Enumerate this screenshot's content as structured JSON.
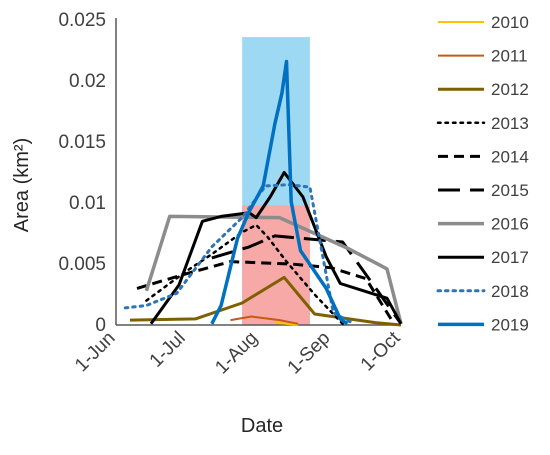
{
  "chart_data": {
    "type": "line",
    "xlabel": "Date",
    "ylabel": "Area (km²)",
    "xlim": [
      "2019-06-01",
      "2019-10-01"
    ],
    "ylim": [
      0,
      0.025
    ],
    "x_ticks": [
      "2019-06-01",
      "2019-07-01",
      "2019-08-01",
      "2019-09-01",
      "2019-10-01"
    ],
    "x_tick_labels": [
      "1-Jun",
      "1-Jul",
      "1-Aug",
      "1-Sep",
      "1-Oct"
    ],
    "y_ticks": [
      0,
      0.005,
      0.01,
      0.015,
      0.02,
      0.025
    ],
    "y_tick_labels": [
      "0",
      "0.005",
      "0.01",
      "0.015",
      "0.02",
      "0.025"
    ],
    "grid": false,
    "legend_position": "right",
    "highlight_bands": [
      {
        "x_start": "2019-07-25",
        "x_end": "2019-08-23",
        "y_max": 0.0236,
        "color": "#9ed9f4"
      },
      {
        "x_start": "2019-07-25",
        "x_end": "2019-08-23",
        "y_max": 0.0098,
        "color": "#f6a9a7"
      }
    ],
    "series": [
      {
        "name": "2010",
        "color": "#ffc000",
        "dash": "solid",
        "width": 2,
        "points": [
          [
            "2019-08-08",
            0.0002
          ],
          [
            "2019-08-18",
            0.0
          ]
        ]
      },
      {
        "name": "2011",
        "color": "#c55a11",
        "dash": "solid",
        "width": 2,
        "points": [
          [
            "2019-07-20",
            0.0004
          ],
          [
            "2019-07-29",
            0.0007
          ],
          [
            "2019-08-10",
            0.0004
          ],
          [
            "2019-08-18",
            0.0001
          ]
        ]
      },
      {
        "name": "2012",
        "color": "#7f6000",
        "dash": "solid",
        "width": 3,
        "points": [
          [
            "2019-06-07",
            0.0004
          ],
          [
            "2019-07-05",
            0.0005
          ],
          [
            "2019-07-25",
            0.0018
          ],
          [
            "2019-08-12",
            0.0039
          ],
          [
            "2019-08-25",
            0.0009
          ],
          [
            "2019-09-20",
            0.0002
          ],
          [
            "2019-10-01",
            0.0
          ]
        ]
      },
      {
        "name": "2013",
        "color": "#000000",
        "dash": "dot",
        "width": 2.5,
        "points": [
          [
            "2019-06-14",
            0.002
          ],
          [
            "2019-07-01",
            0.0044
          ],
          [
            "2019-07-12",
            0.0058
          ],
          [
            "2019-07-25",
            0.0076
          ],
          [
            "2019-07-31",
            0.0082
          ],
          [
            "2019-08-05",
            0.0072
          ],
          [
            "2019-08-13",
            0.0052
          ],
          [
            "2019-08-25",
            0.0025
          ],
          [
            "2019-09-06",
            0.0001
          ]
        ]
      },
      {
        "name": "2014",
        "color": "#000000",
        "dash": "dash",
        "width": 3,
        "points": [
          [
            "2019-06-10",
            0.003
          ],
          [
            "2019-07-01",
            0.0042
          ],
          [
            "2019-07-20",
            0.0052
          ],
          [
            "2019-08-15",
            0.005
          ],
          [
            "2019-09-01",
            0.0047
          ],
          [
            "2019-09-16",
            0.0038
          ],
          [
            "2019-09-28",
            0.0001
          ]
        ]
      },
      {
        "name": "2015",
        "color": "#000000",
        "dash": "longdash",
        "width": 3,
        "points": [
          [
            "2019-07-12",
            0.0055
          ],
          [
            "2019-07-28",
            0.0064
          ],
          [
            "2019-08-08",
            0.0073
          ],
          [
            "2019-09-06",
            0.0068
          ],
          [
            "2019-09-21",
            0.0028
          ],
          [
            "2019-10-01",
            0.0001
          ]
        ]
      },
      {
        "name": "2016",
        "color": "#8c8c8c",
        "dash": "solid",
        "width": 3.5,
        "points": [
          [
            "2019-06-14",
            0.0028
          ],
          [
            "2019-06-24",
            0.0089
          ],
          [
            "2019-08-10",
            0.0088
          ],
          [
            "2019-09-08",
            0.0063
          ],
          [
            "2019-09-25",
            0.0046
          ],
          [
            "2019-10-01",
            0.0001
          ]
        ]
      },
      {
        "name": "2017",
        "color": "#000000",
        "dash": "solid",
        "width": 3,
        "points": [
          [
            "2019-06-16",
            0.0001
          ],
          [
            "2019-06-28",
            0.0033
          ],
          [
            "2019-07-08",
            0.0085
          ],
          [
            "2019-07-16",
            0.0089
          ],
          [
            "2019-07-28",
            0.0092
          ],
          [
            "2019-07-31",
            0.0088
          ],
          [
            "2019-08-06",
            0.0105
          ],
          [
            "2019-08-12",
            0.0125
          ],
          [
            "2019-08-20",
            0.0105
          ],
          [
            "2019-08-30",
            0.0056
          ],
          [
            "2019-09-05",
            0.0034
          ],
          [
            "2019-09-25",
            0.0022
          ],
          [
            "2019-10-01",
            0.0001
          ]
        ]
      },
      {
        "name": "2018",
        "color": "#2e75b6",
        "dash": "dot",
        "width": 3,
        "points": [
          [
            "2019-06-05",
            0.0014
          ],
          [
            "2019-06-14",
            0.0016
          ],
          [
            "2019-06-27",
            0.0026
          ],
          [
            "2019-07-12",
            0.0064
          ],
          [
            "2019-07-25",
            0.0088
          ],
          [
            "2019-08-04",
            0.0114
          ],
          [
            "2019-08-14",
            0.0115
          ],
          [
            "2019-08-23",
            0.0113
          ],
          [
            "2019-09-02",
            0.001
          ],
          [
            "2019-09-10",
            0.0002
          ]
        ]
      },
      {
        "name": "2019",
        "color": "#0070c0",
        "dash": "solid",
        "width": 3.5,
        "points": [
          [
            "2019-07-12",
            0.0001
          ],
          [
            "2019-07-16",
            0.0016
          ],
          [
            "2019-07-23",
            0.0071
          ],
          [
            "2019-07-28",
            0.0093
          ],
          [
            "2019-08-03",
            0.0114
          ],
          [
            "2019-08-08",
            0.0165
          ],
          [
            "2019-08-11",
            0.019
          ],
          [
            "2019-08-13",
            0.0216
          ],
          [
            "2019-08-15",
            0.0101
          ],
          [
            "2019-08-19",
            0.0061
          ],
          [
            "2019-08-30",
            0.003
          ],
          [
            "2019-09-05",
            0.0005
          ],
          [
            "2019-09-08",
            0.0001
          ]
        ]
      }
    ]
  }
}
